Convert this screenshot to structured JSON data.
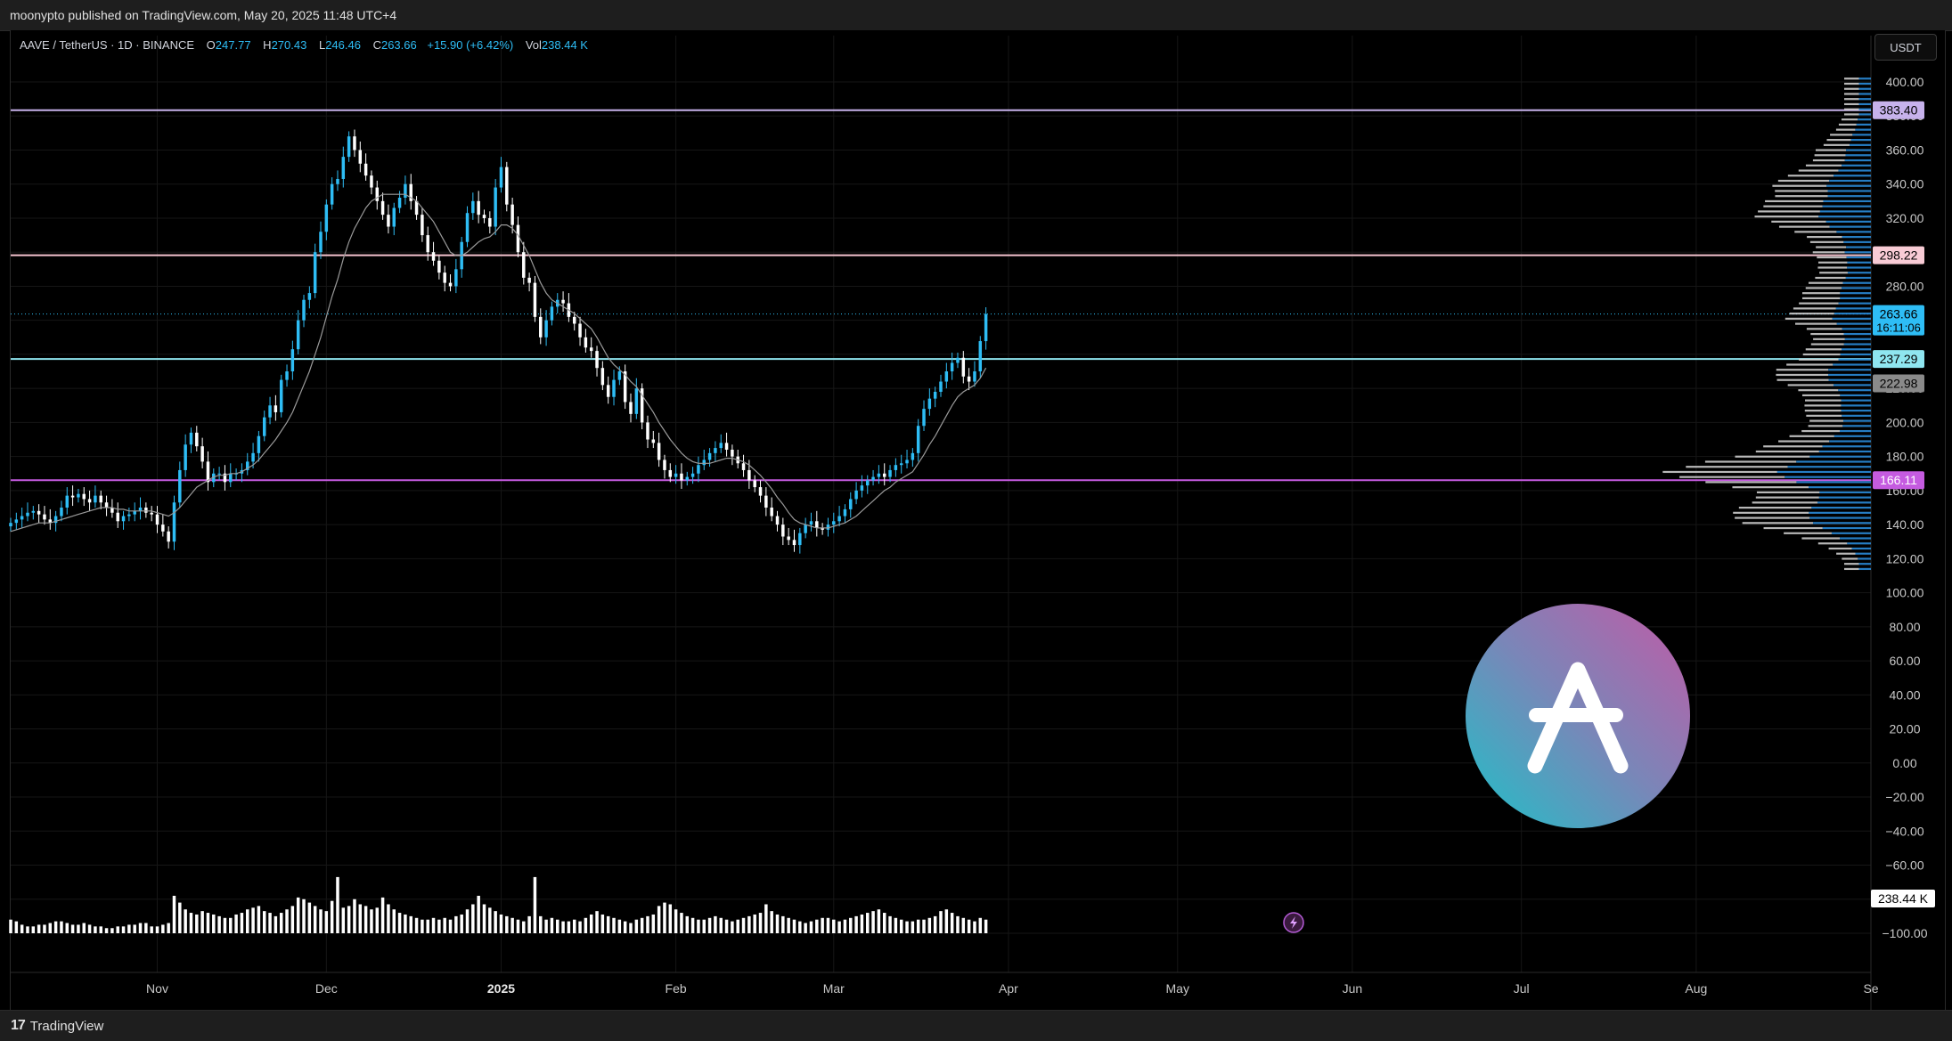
{
  "header": {
    "published": "moonypto published on TradingView.com, May 20, 2025 11:48 UTC+4"
  },
  "legend": {
    "symbol": "AAVE / TetherUS · 1D · BINANCE",
    "o_label": "O",
    "o": "247.77",
    "h_label": "H",
    "h": "270.43",
    "l_label": "L",
    "l": "246.46",
    "c_label": "C",
    "c": "263.66",
    "change": "+15.90 (+6.42%)",
    "vol_label": "Vol",
    "vol": "238.44 K"
  },
  "currency_button": "USDT",
  "footer": {
    "brand": "TradingView",
    "logo": "17"
  },
  "chart_data": {
    "type": "candlestick",
    "symbol": "AAVE / TetherUS",
    "interval": "1D",
    "exchange": "BINANCE",
    "ylim": [
      -100,
      400
    ],
    "y_ticks": [
      400,
      380,
      360,
      340,
      320,
      300,
      280,
      260,
      240,
      220,
      200,
      180,
      160,
      140,
      120,
      100,
      80,
      60,
      40,
      20,
      0,
      -20,
      -40,
      -60,
      -80,
      -100
    ],
    "y_tick_labels": [
      "400.00",
      "380.00",
      "360.00",
      "340.00",
      "320.00",
      "300.00",
      "280.00",
      "260.00",
      "240.00",
      "220.00",
      "200.00",
      "180.00",
      "160.00",
      "140.00",
      "120.00",
      "100.00",
      "80.00",
      "60.00",
      "40.00",
      "20.00",
      "0.00",
      "−20.00",
      "−40.00",
      "−60.00",
      "−80.00",
      "−100.00"
    ],
    "x_start": "2024-10-06",
    "x_end": "2025-09-01",
    "x_ticks": [
      {
        "label": "Nov",
        "date": "2024-11-01"
      },
      {
        "label": "Dec",
        "date": "2024-12-01"
      },
      {
        "label": "2025",
        "date": "2025-01-01",
        "bold": true
      },
      {
        "label": "Feb",
        "date": "2025-02-01"
      },
      {
        "label": "Mar",
        "date": "2025-03-01"
      },
      {
        "label": "Apr",
        "date": "2025-04-01"
      },
      {
        "label": "May",
        "date": "2025-05-01"
      },
      {
        "label": "Jun",
        "date": "2025-06-01"
      },
      {
        "label": "Jul",
        "date": "2025-07-01"
      },
      {
        "label": "Aug",
        "date": "2025-08-01"
      },
      {
        "label": "Se",
        "date": "2025-09-01"
      }
    ],
    "data_start": "2024-10-06",
    "closes": [
      141,
      143,
      145,
      147,
      148,
      146,
      143,
      141,
      145,
      150,
      157,
      156,
      158,
      155,
      153,
      157,
      153,
      150,
      147,
      142,
      145,
      146,
      148,
      150,
      147,
      146,
      140,
      136,
      130,
      153,
      172,
      187,
      194,
      186,
      177,
      165,
      170,
      170,
      165,
      170,
      170,
      172,
      177,
      182,
      192,
      203,
      210,
      206,
      225,
      230,
      243,
      260,
      272,
      276,
      300,
      312,
      328,
      340,
      343,
      356,
      368,
      360,
      352,
      345,
      338,
      330,
      322,
      315,
      326,
      332,
      340,
      330,
      322,
      310,
      300,
      295,
      288,
      282,
      280,
      290,
      306,
      323,
      330,
      322,
      320,
      315,
      338,
      350,
      328,
      316,
      300,
      285,
      282,
      262,
      250,
      260,
      268,
      272,
      270,
      262,
      258,
      250,
      244,
      242,
      232,
      222,
      215,
      225,
      230,
      212,
      205,
      220,
      200,
      190,
      188,
      178,
      172,
      168,
      170,
      166,
      168,
      170,
      175,
      178,
      182,
      185,
      188,
      184,
      180,
      176,
      172,
      166,
      162,
      157,
      150,
      145,
      140,
      133,
      131,
      128,
      135,
      140,
      142,
      138,
      137,
      140,
      142,
      145,
      149,
      155,
      160,
      163,
      166,
      168,
      170,
      168,
      172,
      175,
      176,
      178,
      182,
      198,
      208,
      214,
      218,
      224,
      230,
      235,
      238,
      227,
      224,
      230,
      247.77,
      263.66
    ],
    "sma": [
      136,
      137,
      138,
      139,
      140,
      141,
      141,
      141,
      142,
      143,
      144,
      145,
      146,
      147,
      148,
      149,
      150,
      150,
      150,
      149,
      149,
      148,
      148,
      148,
      148,
      148,
      147,
      146,
      145,
      147,
      150,
      154,
      158,
      162,
      164,
      166,
      168,
      169,
      169,
      170,
      170,
      171,
      173,
      175,
      178,
      182,
      186,
      190,
      195,
      200,
      206,
      214,
      222,
      230,
      240,
      250,
      262,
      274,
      284,
      296,
      306,
      314,
      320,
      326,
      330,
      332,
      334,
      334,
      334,
      334,
      334,
      332,
      330,
      326,
      322,
      318,
      312,
      306,
      300,
      298,
      298,
      300,
      303,
      306,
      308,
      309,
      312,
      316,
      316,
      314,
      310,
      304,
      298,
      290,
      282,
      276,
      272,
      270,
      268,
      266,
      264,
      261,
      258,
      255,
      250,
      244,
      238,
      234,
      231,
      228,
      224,
      221,
      216,
      211,
      206,
      200,
      195,
      190,
      186,
      182,
      179,
      177,
      176,
      176,
      176,
      177,
      178,
      179,
      179,
      178,
      177,
      175,
      172,
      169,
      165,
      161,
      156,
      152,
      147,
      143,
      141,
      140,
      139,
      138,
      138,
      138,
      139,
      140,
      141,
      143,
      145,
      148,
      151,
      154,
      157,
      160,
      162,
      165,
      167,
      169,
      171,
      176,
      181,
      187,
      192,
      198,
      204,
      210,
      215,
      218,
      220,
      222,
      226,
      232
    ],
    "volume_baseline": -100,
    "volumes": [
      8,
      7,
      5,
      4,
      4,
      5,
      5,
      6,
      7,
      7,
      6,
      5,
      5,
      6,
      5,
      4,
      4,
      3,
      3,
      4,
      4,
      5,
      5,
      6,
      6,
      4,
      4,
      5,
      6,
      22,
      18,
      14,
      12,
      11,
      13,
      12,
      11,
      10,
      9,
      9,
      11,
      12,
      14,
      15,
      16,
      13,
      12,
      10,
      12,
      14,
      16,
      21,
      20,
      18,
      16,
      14,
      13,
      19,
      33,
      15,
      16,
      20,
      17,
      16,
      14,
      15,
      21,
      17,
      14,
      12,
      11,
      10,
      9,
      8,
      8,
      9,
      8,
      9,
      8,
      10,
      11,
      14,
      17,
      22,
      17,
      15,
      13,
      11,
      10,
      9,
      8,
      7,
      10,
      33,
      10,
      8,
      9,
      8,
      7,
      7,
      8,
      7,
      9,
      11,
      13,
      11,
      10,
      9,
      8,
      7,
      6,
      8,
      9,
      10,
      11,
      16,
      18,
      17,
      14,
      12,
      10,
      9,
      8,
      8,
      9,
      10,
      9,
      8,
      7,
      8,
      9,
      10,
      11,
      12,
      17,
      13,
      11,
      10,
      9,
      8,
      7,
      6,
      7,
      8,
      9,
      9,
      8,
      7,
      8,
      9,
      10,
      11,
      12,
      13,
      14,
      12,
      10,
      9,
      8,
      7,
      7,
      8,
      8,
      9,
      10,
      13,
      14,
      12,
      10,
      9,
      8,
      7,
      9,
      8
    ],
    "horizontal_levels": [
      {
        "value": 383.4,
        "label": "383.40",
        "color": "#c7b2ec",
        "badge_bg": "#c7b2ec",
        "badge_fg": "#000000"
      },
      {
        "value": 298.22,
        "label": "298.22",
        "color": "#f5c3cf",
        "badge_bg": "#f8cbd5",
        "badge_fg": "#000000"
      },
      {
        "value": 237.29,
        "label": "237.29",
        "color": "#8fe6f0",
        "badge_bg": "#8fe6f0",
        "badge_fg": "#000000"
      },
      {
        "value": 166.11,
        "label": "166.11",
        "color": "#c55be0",
        "badge_bg": "#c55be0",
        "badge_fg": "#ffffff"
      }
    ],
    "last_price": {
      "value": 263.66,
      "label": "263.66",
      "countdown": "16:11:06",
      "color": "#2ebdf5"
    },
    "gray_marker": {
      "value": 222.98,
      "label": "222.98",
      "color": "#8a8a8a"
    },
    "volume_label": "238.44 K",
    "colors": {
      "up": "#2ebdf5",
      "down": "#ffffff",
      "sma": "#9a9a9a",
      "volume": "#ffffff",
      "grid": "#161616"
    }
  }
}
